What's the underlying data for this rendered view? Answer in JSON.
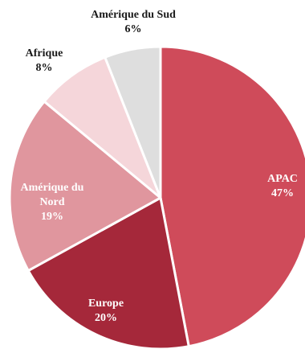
{
  "chart_data": {
    "type": "pie",
    "title": "",
    "slices": [
      {
        "label_lines": [
          "APAC"
        ],
        "value": 47,
        "value_label": "47%",
        "color": "#cf4b5a",
        "text_color": "#ffffff"
      },
      {
        "label_lines": [
          "Europe"
        ],
        "value": 20,
        "value_label": "20%",
        "color": "#a5283a",
        "text_color": "#ffffff"
      },
      {
        "label_lines": [
          "Amérique du",
          "Nord"
        ],
        "value": 19,
        "value_label": "19%",
        "color": "#e0969e",
        "text_color": "#ffffff"
      },
      {
        "label_lines": [
          "Afrique"
        ],
        "value": 8,
        "value_label": "8%",
        "color": "#f5d6da",
        "text_color": "#1a1a1a"
      },
      {
        "label_lines": [
          "Amérique du Sud"
        ],
        "value": 6,
        "value_label": "6%",
        "color": "#dedede",
        "text_color": "#1a1a1a"
      }
    ],
    "start": "top",
    "direction": "clockwise",
    "legend": "none"
  }
}
